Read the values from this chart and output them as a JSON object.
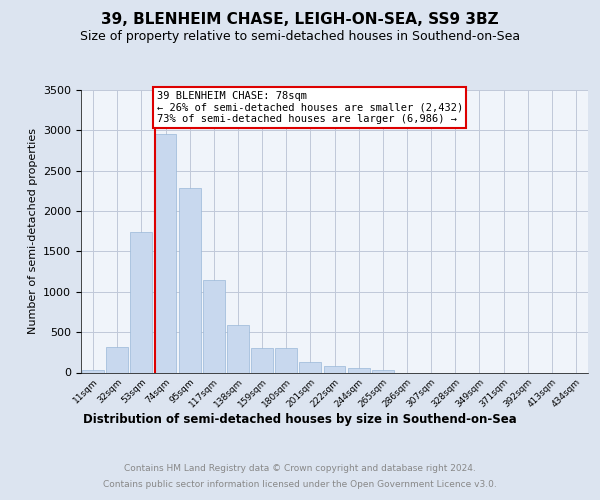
{
  "title": "39, BLENHEIM CHASE, LEIGH-ON-SEA, SS9 3BZ",
  "subtitle": "Size of property relative to semi-detached houses in Southend-on-Sea",
  "xlabel": "Distribution of semi-detached houses by size in Southend-on-Sea",
  "ylabel": "Number of semi-detached properties",
  "property_label": "39 BLENHEIM CHASE: 78sqm",
  "pct_smaller": 26,
  "pct_larger": 73,
  "count_smaller": 2432,
  "count_larger": 6986,
  "bar_categories": [
    "11sqm",
    "32sqm",
    "53sqm",
    "74sqm",
    "95sqm",
    "117sqm",
    "138sqm",
    "159sqm",
    "180sqm",
    "201sqm",
    "222sqm",
    "244sqm",
    "265sqm",
    "286sqm",
    "307sqm",
    "328sqm",
    "349sqm",
    "371sqm",
    "392sqm",
    "413sqm",
    "434sqm"
  ],
  "bar_values": [
    30,
    320,
    1740,
    2950,
    2280,
    1150,
    590,
    300,
    300,
    130,
    80,
    55,
    30,
    0,
    0,
    0,
    0,
    0,
    0,
    0,
    0
  ],
  "bar_color": "#c8d8ee",
  "bar_edge_color": "#9ab8d8",
  "vline_bar_index": 3,
  "vline_color": "#dd0000",
  "ylim": [
    0,
    3500
  ],
  "yticks": [
    0,
    500,
    1000,
    1500,
    2000,
    2500,
    3000,
    3500
  ],
  "background_color": "#dce4f0",
  "plot_background": "#f0f4fa",
  "footer_line1": "Contains HM Land Registry data © Crown copyright and database right 2024.",
  "footer_line2": "Contains public sector information licensed under the Open Government Licence v3.0.",
  "title_fontsize": 11,
  "subtitle_fontsize": 9,
  "grid_color": "#c0c8d8"
}
